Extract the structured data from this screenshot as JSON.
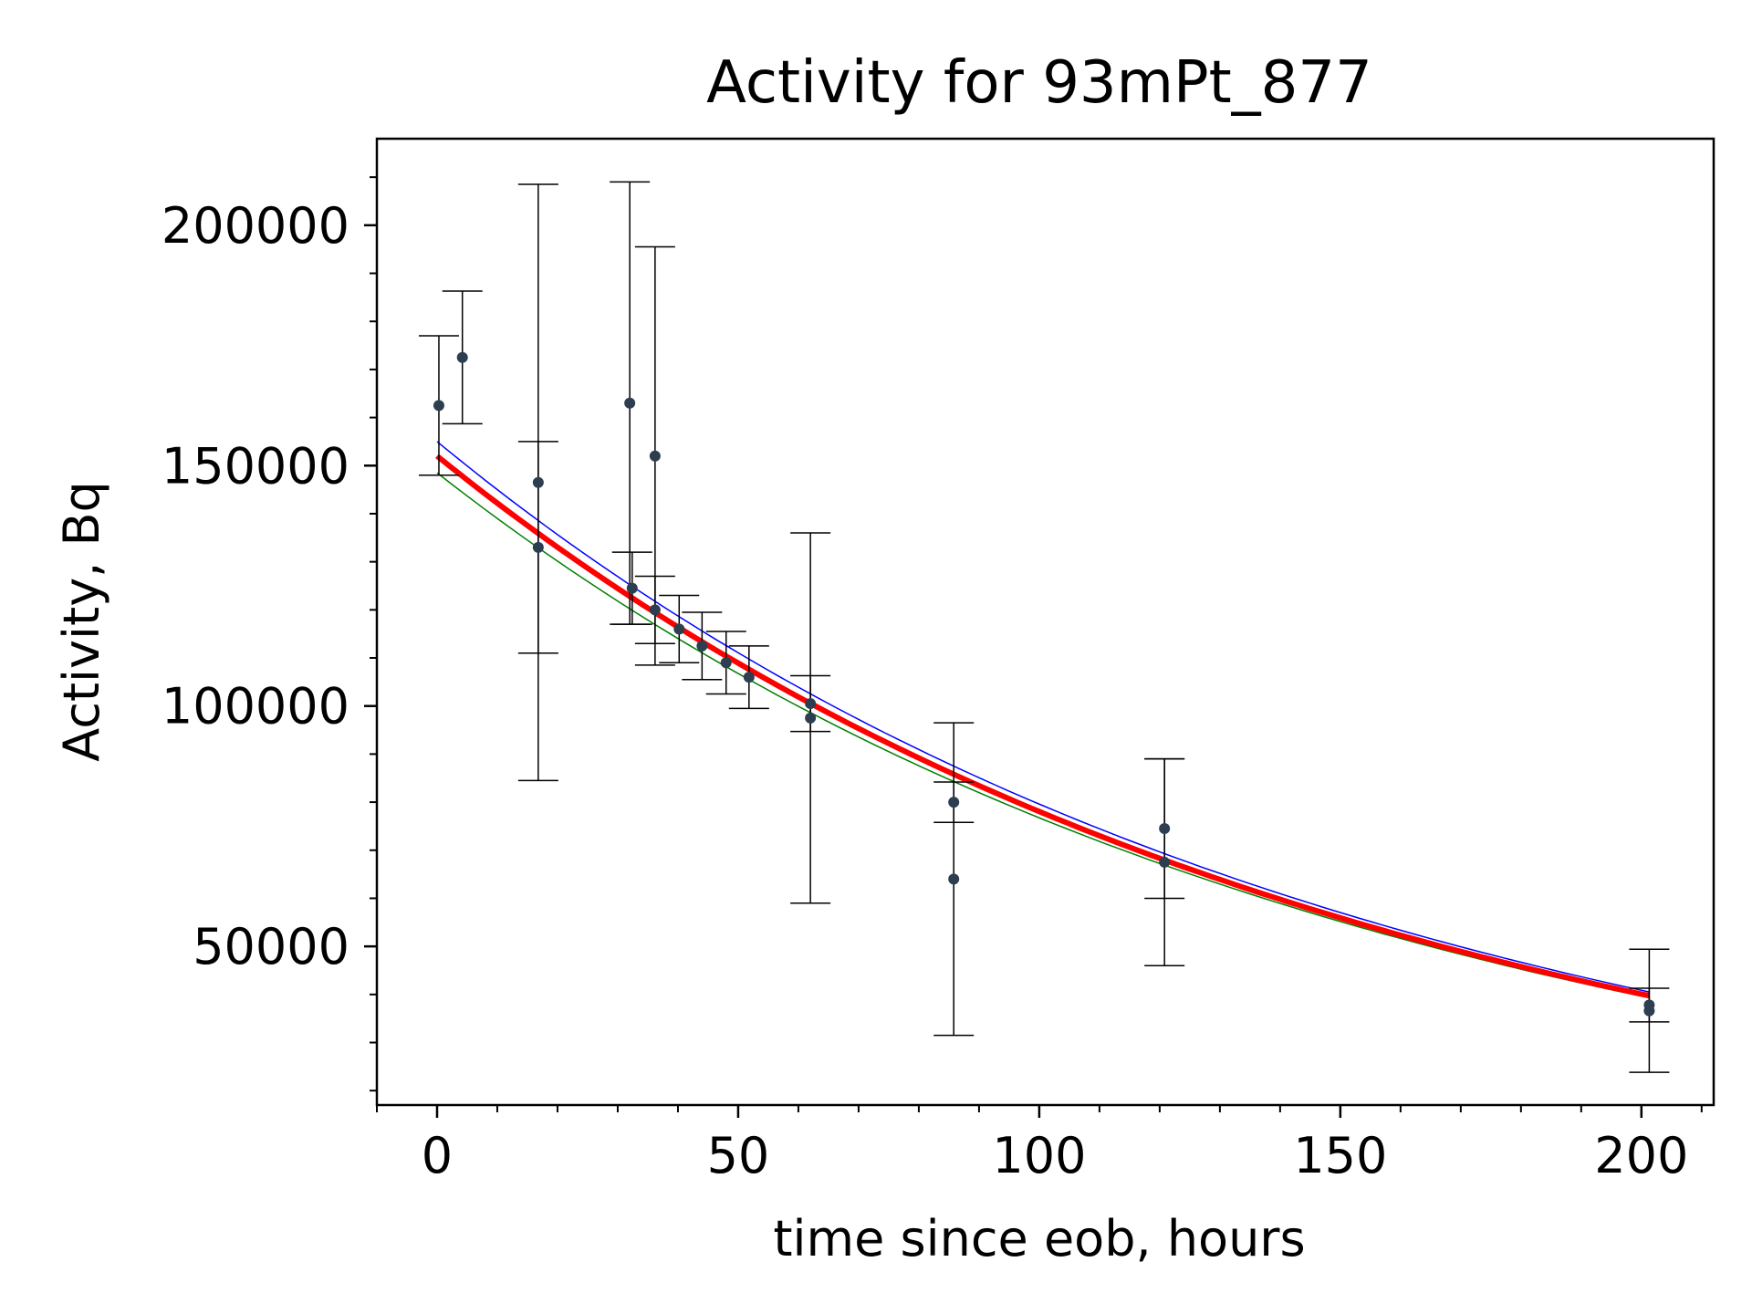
{
  "chart_data": {
    "type": "scatter",
    "title": "Activity for 93mPt_877",
    "xlabel": "time since eob, hours",
    "ylabel": "Activity, Bq",
    "xlim": [
      -10,
      212
    ],
    "ylim": [
      17000,
      218000
    ],
    "x_ticks": [
      0,
      50,
      100,
      150,
      200
    ],
    "x_tick_labels": [
      "0",
      "50",
      "100",
      "150",
      "200"
    ],
    "y_ticks": [
      50000,
      100000,
      150000,
      200000
    ],
    "y_tick_labels": [
      "50000",
      "100000",
      "150000",
      "200000"
    ],
    "x_minor_step": 10,
    "y_minor_step": 10000,
    "grid": false,
    "legend": "none",
    "colors": {
      "points": "#2c3e50",
      "errorbars": "#000000",
      "fit": "#ff0000",
      "upper_bound": "#0000ff",
      "lower_bound": "#008000"
    },
    "points": [
      {
        "x": 0.3,
        "y": 162500,
        "err": 14500
      },
      {
        "x": 4.2,
        "y": 172500,
        "err": 13800
      },
      {
        "x": 16.8,
        "y": 146500,
        "err": 62000
      },
      {
        "x": 16.8,
        "y": 133000,
        "err": 22000
      },
      {
        "x": 32.0,
        "y": 163000,
        "err": 46000
      },
      {
        "x": 32.4,
        "y": 124500,
        "err": 7500
      },
      {
        "x": 36.2,
        "y": 152000,
        "err": 43500
      },
      {
        "x": 36.2,
        "y": 120000,
        "err": 7000
      },
      {
        "x": 40.2,
        "y": 116000,
        "err": 7000
      },
      {
        "x": 44.0,
        "y": 112500,
        "err": 7000
      },
      {
        "x": 48.0,
        "y": 109000,
        "err": 6500
      },
      {
        "x": 51.8,
        "y": 106000,
        "err": 6500
      },
      {
        "x": 62.0,
        "y": 100500,
        "err": 5800
      },
      {
        "x": 62.0,
        "y": 97500,
        "err": 38500
      },
      {
        "x": 85.8,
        "y": 80000,
        "err": 4200
      },
      {
        "x": 85.8,
        "y": 64000,
        "err": 32500
      },
      {
        "x": 120.8,
        "y": 74500,
        "err": 14500
      },
      {
        "x": 120.8,
        "y": 67500,
        "err": 21500
      },
      {
        "x": 201.3,
        "y": 37800,
        "err": 3500
      },
      {
        "x": 201.3,
        "y": 36600,
        "err": 12800
      }
    ],
    "series": [
      {
        "values": [
          [
            0,
            152000
          ],
          [
            201.3,
            39800
          ]
        ],
        "half_life_hours": 104
      },
      {
        "values": [
          [
            0,
            155000
          ],
          [
            201.3,
            40500
          ]
        ],
        "half_life_hours": 104
      },
      {
        "values": [
          [
            0,
            148500
          ],
          [
            201.3,
            39300
          ]
        ],
        "half_life_hours": 105
      }
    ]
  }
}
